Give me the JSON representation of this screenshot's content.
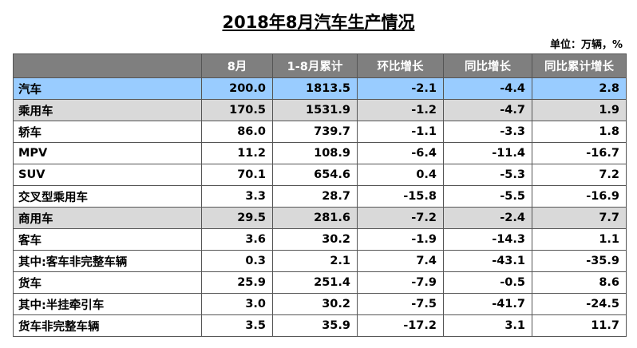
{
  "title": "2018年8月汽车生产情况",
  "unit": "单位：万辆，%",
  "colors": {
    "header_bg": "#7f7f7f",
    "total_row_bg": "#99ccff",
    "category_row_bg": "#d9d9d9"
  },
  "table": {
    "headers": [
      "",
      "8月",
      "1-8月累计",
      "环比增长",
      "同比增长",
      "同比累计增长"
    ],
    "rows": [
      {
        "label": "汽车",
        "values": [
          "200.0",
          "1813.5",
          "-2.1",
          "-4.4",
          "2.8"
        ]
      },
      {
        "label": "乘用车",
        "values": [
          "170.5",
          "1531.9",
          "-1.2",
          "-4.7",
          "1.9"
        ]
      },
      {
        "label": "轿车",
        "values": [
          "86.0",
          "739.7",
          "-1.1",
          "-3.3",
          "1.8"
        ]
      },
      {
        "label": "MPV",
        "values": [
          "11.2",
          "108.9",
          "-6.4",
          "-11.4",
          "-16.7"
        ]
      },
      {
        "label": "SUV",
        "values": [
          "70.1",
          "654.6",
          "0.4",
          "-5.3",
          "7.2"
        ]
      },
      {
        "label": "交叉型乘用车",
        "values": [
          "3.3",
          "28.7",
          "-15.8",
          "-5.5",
          "-16.9"
        ]
      },
      {
        "label": "商用车",
        "values": [
          "29.5",
          "281.6",
          "-7.2",
          "-2.4",
          "7.7"
        ]
      },
      {
        "label": "客车",
        "values": [
          "3.6",
          "30.2",
          "-1.9",
          "-14.3",
          "1.1"
        ]
      },
      {
        "label": "其中:客车非完整车辆",
        "values": [
          "0.3",
          "2.1",
          "7.4",
          "-43.1",
          "-35.9"
        ]
      },
      {
        "label": "货车",
        "values": [
          "25.9",
          "251.4",
          "-7.9",
          "-0.5",
          "8.6"
        ]
      },
      {
        "label": "其中:半挂牵引车",
        "values": [
          "3.0",
          "30.2",
          "-7.5",
          "-41.7",
          "-24.5"
        ]
      },
      {
        "label": "货车非完整车辆",
        "values": [
          "3.5",
          "35.9",
          "-17.2",
          "3.1",
          "11.7"
        ]
      }
    ]
  }
}
